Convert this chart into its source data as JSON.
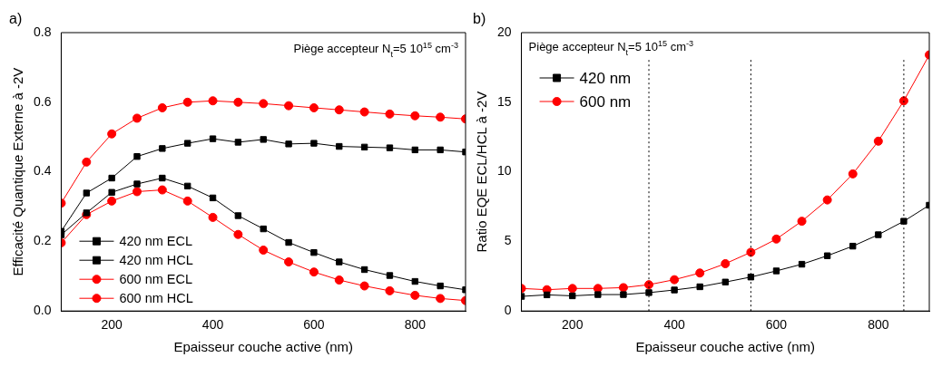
{
  "chart_data": [
    {
      "type": "line",
      "annotations": [
        "a)",
        "Piège accepteur N$_{t}$=5 10$^{15}$ cm$^{-3}$"
      ],
      "xlabel": "Epaisseur couche active (nm)",
      "ylabel": "Efficacité Quantique Externe à -2V",
      "x": [
        100,
        150,
        200,
        250,
        300,
        350,
        400,
        450,
        500,
        550,
        600,
        650,
        700,
        750,
        800,
        850,
        900
      ],
      "series": [
        {
          "name": "420 nm ECL",
          "color": "#000000",
          "marker": "square",
          "values": [
            0.229,
            0.339,
            0.382,
            0.444,
            0.467,
            0.482,
            0.495,
            0.485,
            0.493,
            0.48,
            0.482,
            0.473,
            0.471,
            0.469,
            0.463,
            0.463,
            0.457
          ]
        },
        {
          "name": "420 nm HCL",
          "color": "#000000",
          "marker": "square",
          "values": [
            0.219,
            0.282,
            0.341,
            0.365,
            0.382,
            0.359,
            0.325,
            0.274,
            0.236,
            0.197,
            0.168,
            0.141,
            0.119,
            0.102,
            0.085,
            0.072,
            0.061
          ]
        },
        {
          "name": "600 nm ECL",
          "color": "#ff0000",
          "marker": "circle",
          "values": [
            0.31,
            0.428,
            0.509,
            0.554,
            0.584,
            0.6,
            0.604,
            0.6,
            0.596,
            0.59,
            0.584,
            0.578,
            0.572,
            0.566,
            0.561,
            0.557,
            0.552
          ]
        },
        {
          "name": "600 nm HCL",
          "color": "#ff0000",
          "marker": "circle",
          "values": [
            0.196,
            0.277,
            0.316,
            0.343,
            0.348,
            0.316,
            0.269,
            0.22,
            0.175,
            0.141,
            0.112,
            0.089,
            0.072,
            0.058,
            0.045,
            0.036,
            0.03
          ]
        }
      ],
      "xlim": [
        100,
        900
      ],
      "xticks": [
        200,
        400,
        600,
        800
      ],
      "ylim": [
        0,
        0.8
      ],
      "yticks": [
        {
          "value": 0,
          "label": "0.0"
        },
        0.2,
        0.4,
        0.6,
        0.8
      ],
      "legend": "bottom left",
      "grid": false
    },
    {
      "type": "line",
      "annotations": [
        "b)",
        "Piège accepteur N$_{t}$=5 10$^{15}$ cm$^{-3}$"
      ],
      "xlabel": "Epaisseur couche active (nm)",
      "ylabel": "Ratio EQE ECL/HCL à -2V",
      "x": [
        100,
        150,
        200,
        250,
        300,
        350,
        400,
        450,
        500,
        550,
        600,
        650,
        700,
        750,
        800,
        850,
        900
      ],
      "series": [
        {
          "name": "420 nm",
          "color": "#000000",
          "marker": "square",
          "values": [
            1.05,
            1.16,
            1.09,
            1.18,
            1.18,
            1.32,
            1.51,
            1.74,
            2.08,
            2.44,
            2.88,
            3.36,
            3.97,
            4.66,
            5.48,
            6.45,
            7.6
          ]
        },
        {
          "name": "600 nm",
          "color": "#ff0000",
          "marker": "circle",
          "values": [
            1.62,
            1.53,
            1.62,
            1.62,
            1.68,
            1.89,
            2.25,
            2.73,
            3.4,
            4.22,
            5.17,
            6.45,
            7.98,
            9.85,
            12.2,
            15.1,
            18.4
          ]
        }
      ],
      "ref_lines": [
        {
          "axis": "x",
          "value": 350,
          "line_style": "dotted",
          "color": "#000000"
        },
        {
          "axis": "x",
          "value": 550,
          "line_style": "dotted",
          "color": "#000000"
        },
        {
          "axis": "x",
          "value": 850,
          "line_style": "dotted",
          "color": "#000000"
        }
      ],
      "xlim": [
        100,
        900
      ],
      "xticks": [
        200,
        400,
        600,
        800
      ],
      "ylim": [
        0,
        20
      ],
      "yticks": [
        0,
        5,
        10,
        15,
        20
      ],
      "legend": "top left",
      "grid": false
    }
  ]
}
